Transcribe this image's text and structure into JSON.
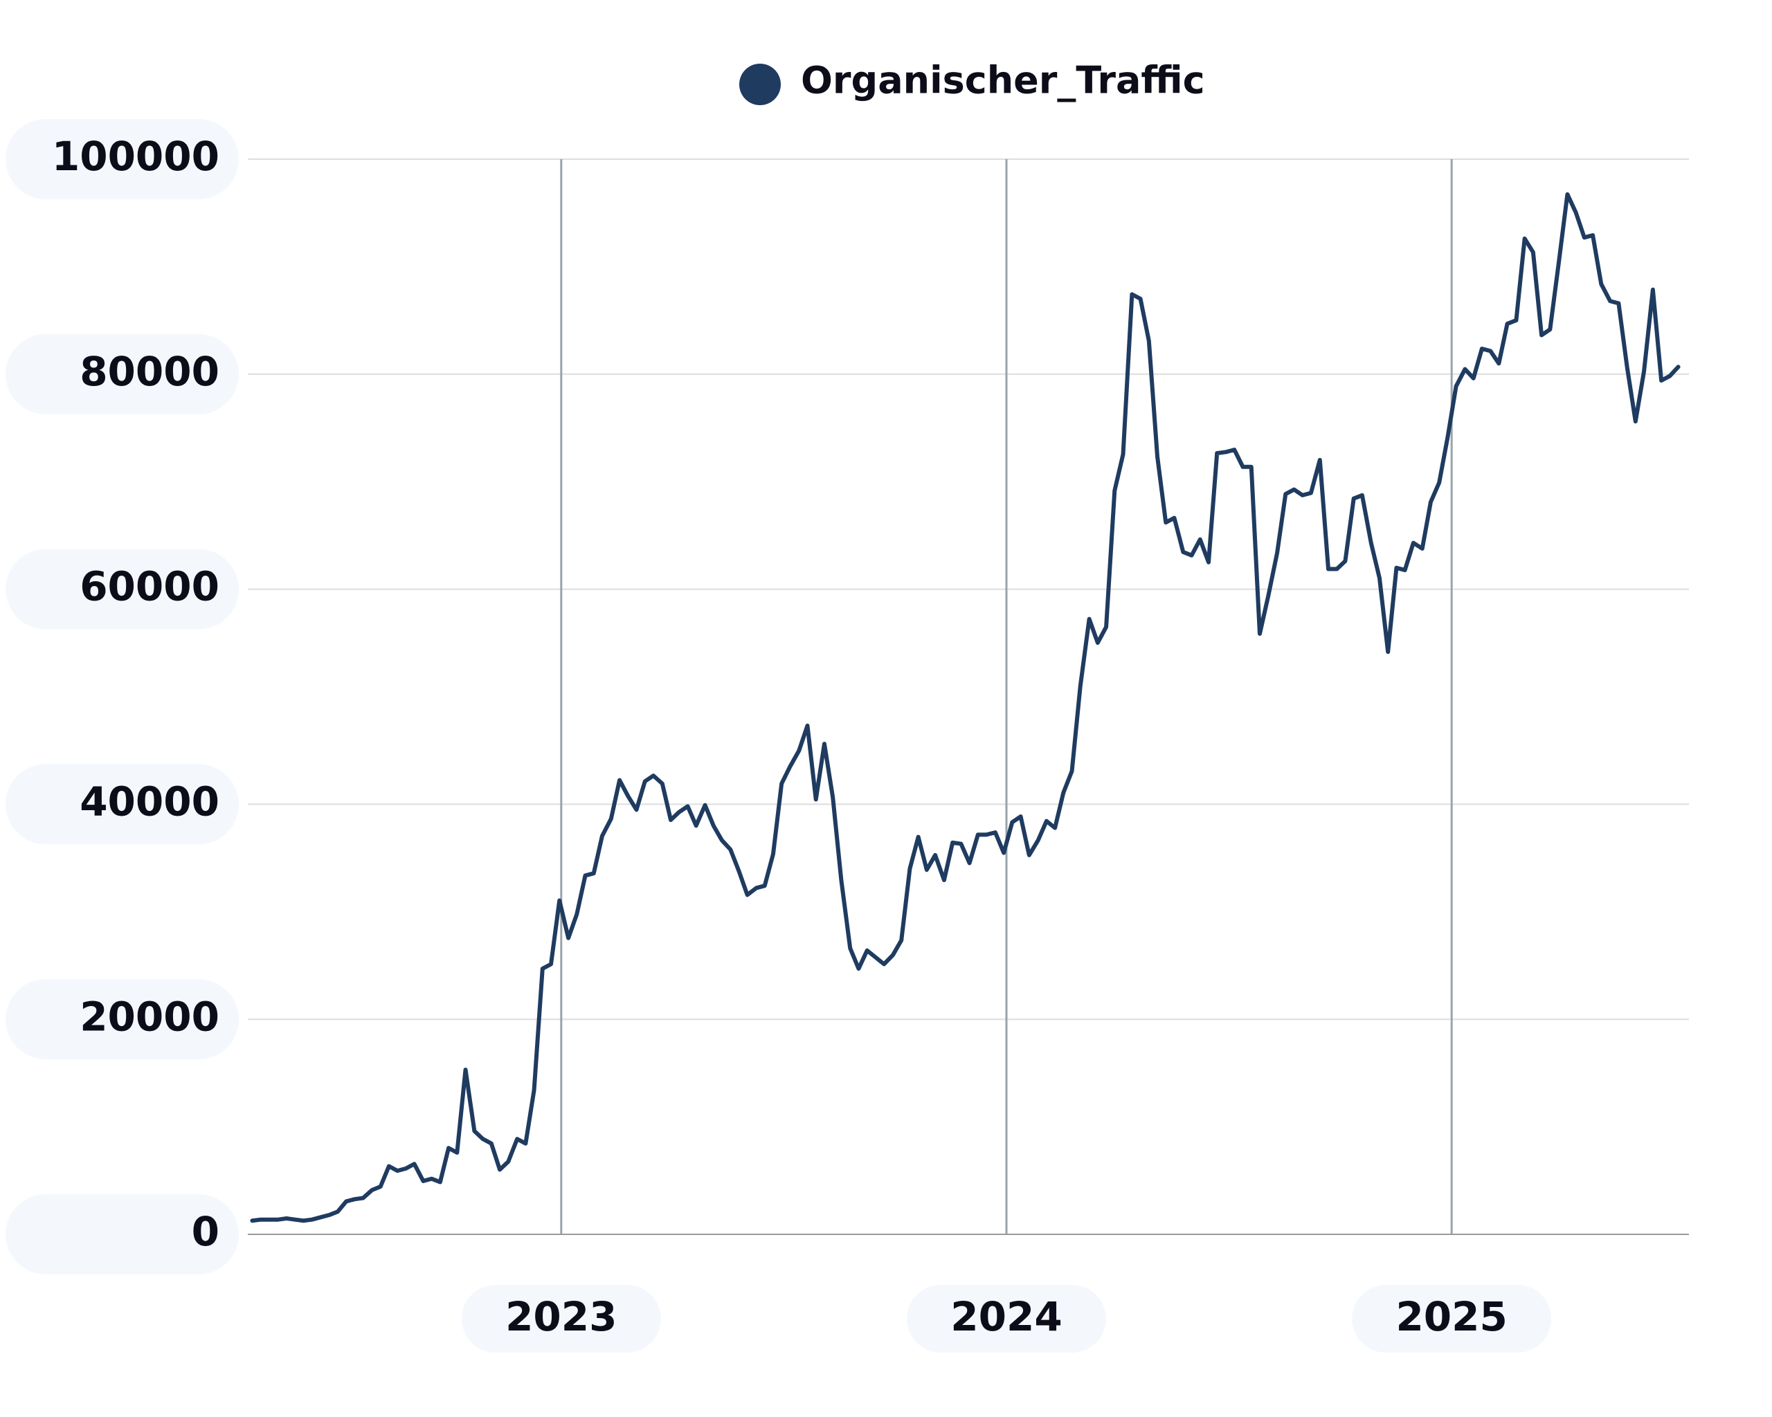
{
  "chart_data": {
    "type": "line",
    "legend": "top",
    "grid": true,
    "xlim": [
      2022.296,
      2025.533
    ],
    "xticks": [
      2023,
      2024,
      2025
    ],
    "ylim": [
      0,
      100000
    ],
    "yticks": [
      0,
      20000,
      40000,
      60000,
      80000,
      100000
    ],
    "x": [
      2022.306,
      2022.325,
      2022.344,
      2022.364,
      2022.383,
      2022.402,
      2022.421,
      2022.44,
      2022.459,
      2022.479,
      2022.498,
      2022.517,
      2022.536,
      2022.555,
      2022.575,
      2022.594,
      2022.613,
      2022.632,
      2022.651,
      2022.67,
      2022.69,
      2022.709,
      2022.728,
      2022.747,
      2022.766,
      2022.785,
      2022.805,
      2022.824,
      2022.843,
      2022.862,
      2022.881,
      2022.901,
      2022.92,
      2022.939,
      2022.958,
      2022.977,
      2022.996,
      2023.016,
      2023.035,
      2023.054,
      2023.073,
      2023.092,
      2023.112,
      2023.131,
      2023.15,
      2023.169,
      2023.188,
      2023.207,
      2023.227,
      2023.246,
      2023.265,
      2023.284,
      2023.303,
      2023.323,
      2023.342,
      2023.361,
      2023.38,
      2023.399,
      2023.418,
      2023.438,
      2023.457,
      2023.476,
      2023.495,
      2023.514,
      2023.534,
      2023.553,
      2023.572,
      2023.591,
      2023.61,
      2023.629,
      2023.649,
      2023.668,
      2023.687,
      2023.706,
      2023.725,
      2023.745,
      2023.764,
      2023.783,
      2023.802,
      2023.821,
      2023.84,
      2023.86,
      2023.879,
      2023.898,
      2023.917,
      2023.936,
      2023.955,
      2023.975,
      2023.994,
      2024.013,
      2024.032,
      2024.051,
      2024.071,
      2024.09,
      2024.109,
      2024.128,
      2024.147,
      2024.166,
      2024.186,
      2024.205,
      2024.224,
      2024.243,
      2024.262,
      2024.282,
      2024.301,
      2024.32,
      2024.339,
      2024.358,
      2024.377,
      2024.397,
      2024.416,
      2024.435,
      2024.454,
      2024.473,
      2024.493,
      2024.512,
      2024.531,
      2024.55,
      2024.569,
      2024.588,
      2024.608,
      2024.627,
      2024.646,
      2024.665,
      2024.684,
      2024.704,
      2024.723,
      2024.742,
      2024.761,
      2024.78,
      2024.799,
      2024.819,
      2024.838,
      2024.857,
      2024.876,
      2024.895,
      2024.914,
      2024.934,
      2024.953,
      2024.972,
      2024.991,
      2025.01,
      2025.03,
      2025.049,
      2025.068,
      2025.087,
      2025.106,
      2025.125,
      2025.145,
      2025.164,
      2025.183,
      2025.202,
      2025.221,
      2025.241,
      2025.26,
      2025.279,
      2025.298,
      2025.317,
      2025.336,
      2025.356,
      2025.375,
      2025.394,
      2025.413,
      2025.432,
      2025.452,
      2025.471,
      2025.49,
      2025.509
    ],
    "series": [
      {
        "name": "Organischer_Traffic",
        "color": "#1f3b60",
        "values": [
          1270,
          1370,
          1370,
          1370,
          1480,
          1370,
          1270,
          1370,
          1580,
          1800,
          2110,
          3060,
          3270,
          3380,
          4120,
          4440,
          6340,
          5910,
          6120,
          6550,
          4960,
          5170,
          4860,
          8030,
          7600,
          15310,
          9610,
          8870,
          8450,
          6020,
          6760,
          8870,
          8450,
          13410,
          24710,
          25130,
          31050,
          27560,
          29780,
          33370,
          33580,
          37060,
          38650,
          42240,
          40760,
          39490,
          42130,
          42660,
          41920,
          38540,
          39280,
          39810,
          38010,
          39920,
          38010,
          36640,
          35800,
          33790,
          31570,
          32210,
          32420,
          35370,
          41920,
          43510,
          44980,
          47310,
          40450,
          45620,
          40660,
          32950,
          26610,
          24710,
          26400,
          25770,
          25130,
          25980,
          27350,
          34000,
          36960,
          33900,
          35270,
          32950,
          36430,
          36320,
          34530,
          37170,
          37170,
          37380,
          35480,
          38330,
          38860,
          35270,
          36640,
          38440,
          37800,
          41080,
          43080,
          51000,
          57230,
          55020,
          56490,
          69170,
          72540,
          87430,
          87010,
          83100,
          72330,
          66210,
          66630,
          63460,
          63150,
          64630,
          62510,
          72650,
          72760,
          72970,
          71380,
          71380,
          55860,
          59350,
          63360,
          68850,
          69270,
          68740,
          68950,
          72020,
          61880,
          61880,
          62620,
          68430,
          68740,
          64310,
          61030,
          54170,
          61990,
          61780,
          64310,
          63780,
          68110,
          69910,
          74130,
          78880,
          80470,
          79620,
          82370,
          82160,
          81000,
          84690,
          85010,
          92610,
          91340,
          83630,
          84160,
          90500,
          96730,
          95040,
          92710,
          92920,
          88380,
          86800,
          86590,
          80680,
          75610,
          80250,
          87860,
          79410,
          79830,
          80680
        ]
      }
    ]
  }
}
